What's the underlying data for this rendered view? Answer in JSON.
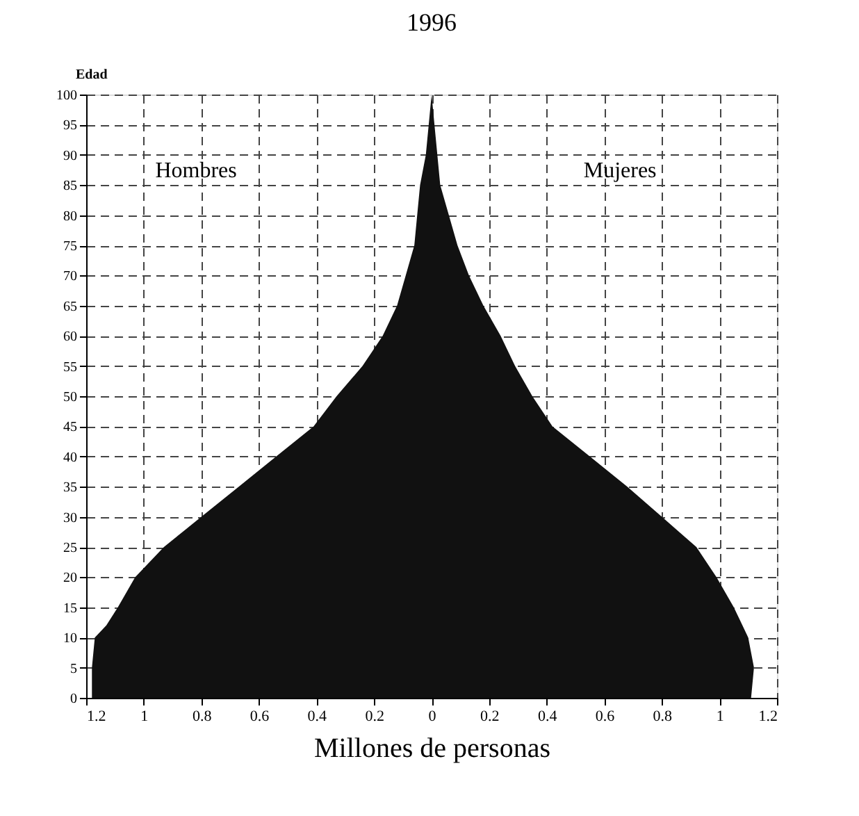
{
  "chart_data": {
    "type": "area",
    "orientation": "horizontal",
    "title": "1996",
    "xlabel": "Millones de personas",
    "ylabel": "Edad",
    "annotations": [
      "Hombres",
      "Mujeres"
    ],
    "x": [
      0,
      5,
      10,
      12,
      15,
      20,
      25,
      30,
      35,
      40,
      45,
      50,
      55,
      60,
      65,
      70,
      75,
      80,
      85,
      90,
      95,
      100
    ],
    "series": [
      {
        "color": "#111111",
        "values": [
          -1.18,
          -1.18,
          -1.17,
          -1.13,
          -1.09,
          -1.03,
          -0.93,
          -0.8,
          -0.67,
          -0.54,
          -0.41,
          -0.33,
          -0.24,
          -0.17,
          -0.12,
          -0.09,
          -0.06,
          -0.05,
          -0.04,
          -0.02,
          -0.01,
          0
        ]
      },
      {
        "color": "#111111",
        "values": [
          1.11,
          1.12,
          1.1,
          1.08,
          1.05,
          0.99,
          0.92,
          0.8,
          0.68,
          0.55,
          0.42,
          0.35,
          0.29,
          0.24,
          0.18,
          0.13,
          0.09,
          0.06,
          0.03,
          0.02,
          0.01,
          0
        ]
      }
    ],
    "xlim": [
      -1.2,
      1.2
    ],
    "xticks": [
      {
        "value": -1.2,
        "label": "1.2"
      },
      {
        "value": -1,
        "label": "1"
      },
      {
        "value": -0.8,
        "label": "0.8"
      },
      {
        "value": -0.6,
        "label": "0.6"
      },
      {
        "value": -0.4,
        "label": "0.4"
      },
      {
        "value": -0.2,
        "label": "0.2"
      },
      0,
      0.2,
      0.4,
      0.6,
      0.8,
      1,
      1.2
    ],
    "ylim": [
      0,
      100
    ],
    "yticks": [
      0,
      5,
      10,
      15,
      20,
      25,
      30,
      35,
      40,
      45,
      50,
      55,
      60,
      65,
      70,
      75,
      80,
      85,
      90,
      95,
      100
    ],
    "grid": true,
    "line_style": "dashed"
  }
}
